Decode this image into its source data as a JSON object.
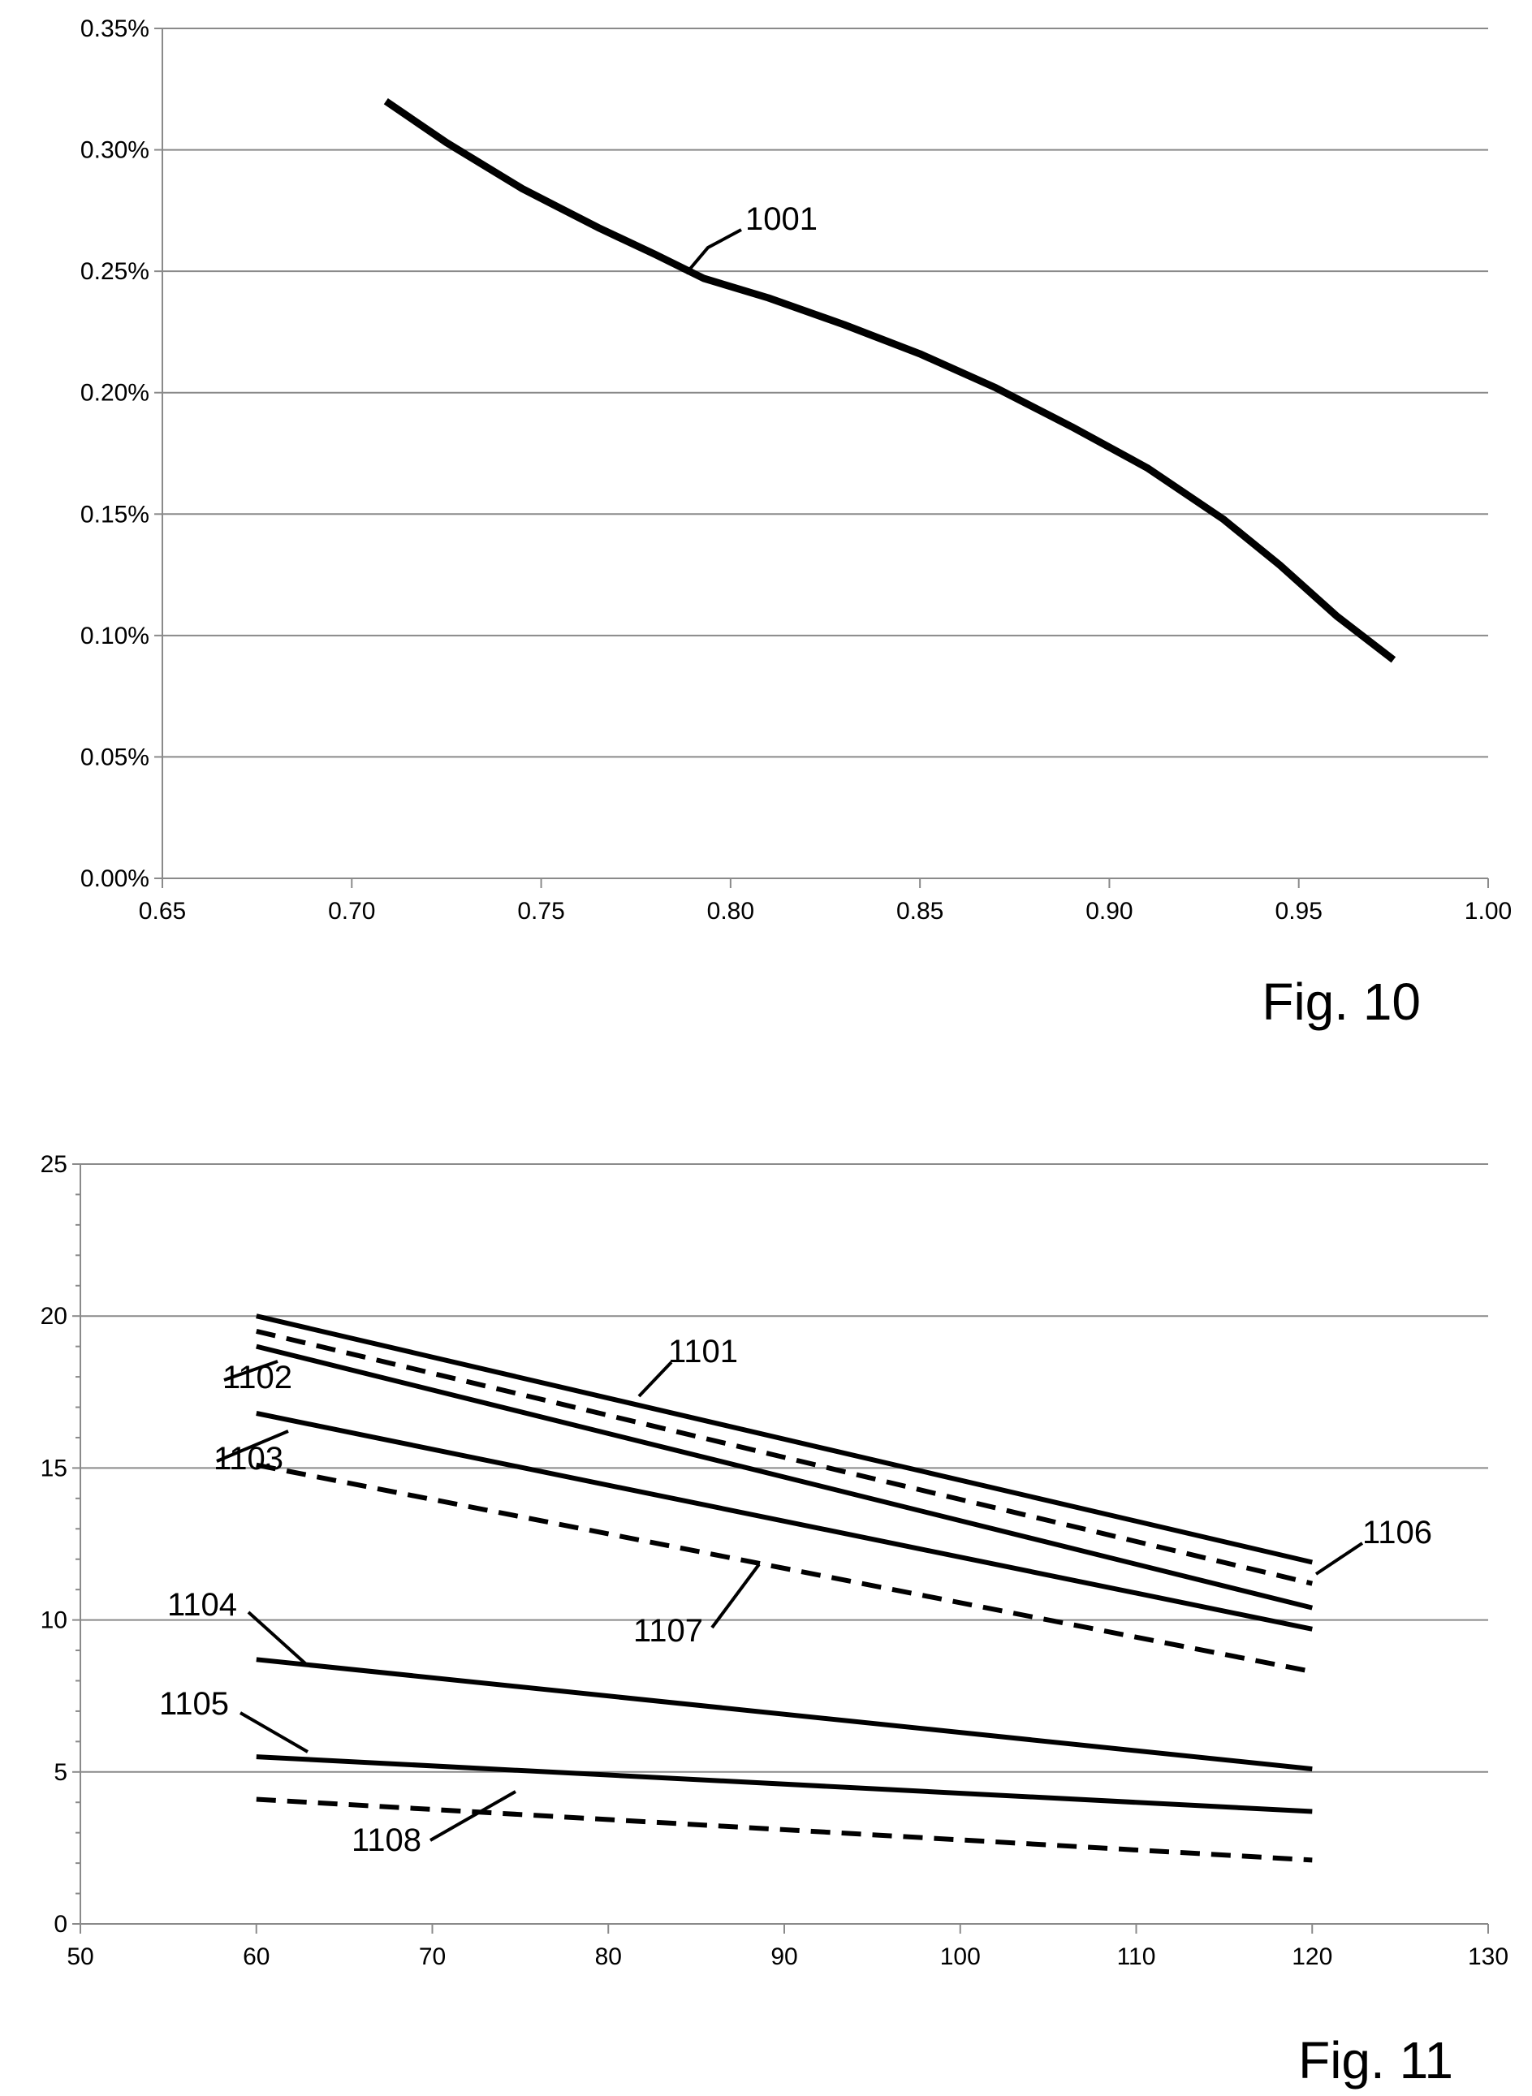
{
  "chart_data": [
    {
      "type": "line",
      "figure_label": "Fig. 10",
      "title": "",
      "xlabel": "",
      "ylabel": "",
      "xlim": [
        0.65,
        1.0
      ],
      "ylim": [
        0,
        0.35
      ],
      "grid": true,
      "x_ticks": [
        "0.65",
        "0.70",
        "0.75",
        "0.80",
        "0.85",
        "0.90",
        "0.95",
        "1.00"
      ],
      "y_ticks": [
        "0.00%",
        "0.05%",
        "0.10%",
        "0.15%",
        "0.20%",
        "0.25%",
        "0.30%",
        "0.35%"
      ],
      "series": [
        {
          "label": "1001",
          "style": "solid",
          "x": [
            0.709,
            0.725,
            0.745,
            0.765,
            0.78,
            0.793,
            0.81,
            0.83,
            0.85,
            0.87,
            0.89,
            0.91,
            0.93,
            0.945,
            0.96,
            0.975
          ],
          "y": [
            0.32,
            0.303,
            0.284,
            0.268,
            0.257,
            0.247,
            0.239,
            0.228,
            0.216,
            0.202,
            0.186,
            0.169,
            0.148,
            0.129,
            0.108,
            0.09
          ]
        }
      ]
    },
    {
      "type": "line",
      "figure_label": "Fig. 11",
      "title": "",
      "xlabel": "",
      "ylabel": "",
      "xlim": [
        50,
        130
      ],
      "ylim": [
        0,
        25
      ],
      "grid": true,
      "x_ticks": [
        "50",
        "60",
        "70",
        "80",
        "90",
        "100",
        "110",
        "120",
        "130"
      ],
      "y_ticks": [
        "0",
        "5",
        "10",
        "15",
        "20",
        "25"
      ],
      "series": [
        {
          "label": "1101",
          "style": "solid",
          "x": [
            60,
            120
          ],
          "y": [
            20.0,
            11.9
          ]
        },
        {
          "label": "1106",
          "style": "dashed",
          "x": [
            60,
            120
          ],
          "y": [
            19.5,
            11.2
          ]
        },
        {
          "label": "1102",
          "style": "solid",
          "x": [
            60,
            120
          ],
          "y": [
            19.0,
            10.4
          ]
        },
        {
          "label": "1103",
          "style": "solid",
          "x": [
            60,
            120
          ],
          "y": [
            16.8,
            9.7
          ]
        },
        {
          "label": "1107",
          "style": "dashed",
          "x": [
            60,
            120
          ],
          "y": [
            15.1,
            8.3
          ]
        },
        {
          "label": "1104",
          "style": "solid",
          "x": [
            60,
            120
          ],
          "y": [
            8.7,
            5.1
          ]
        },
        {
          "label": "1105",
          "style": "solid",
          "x": [
            60,
            120
          ],
          "y": [
            5.5,
            3.7
          ]
        },
        {
          "label": "1108",
          "style": "dashed",
          "x": [
            60,
            120
          ],
          "y": [
            4.1,
            2.1
          ]
        }
      ]
    }
  ]
}
